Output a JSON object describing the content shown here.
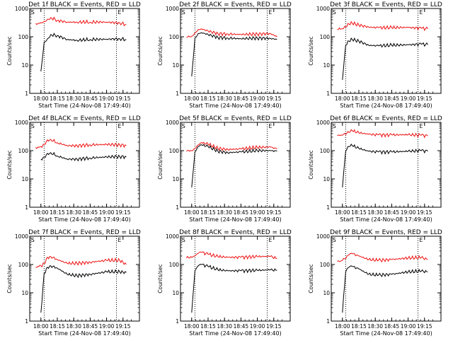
{
  "colors": {
    "events": "#000000",
    "lld": "#ee1111",
    "axis": "#000000",
    "marker": "#000000"
  },
  "chart_data": [
    {
      "type": "line",
      "title": "Det 1f BLACK = Events, RED = LLD",
      "xlabel": "Start Time (24-Nov-08 17:49:40)",
      "ylabel": "Counts/sec",
      "yscale": "log",
      "ylim": [
        1,
        1000
      ],
      "yticks": [
        "1",
        "10",
        "100",
        "1000"
      ],
      "xticks": [
        "18:00",
        "18:15",
        "18:30",
        "18:45",
        "19:00",
        "19:15"
      ],
      "markers": [
        "S",
        "E"
      ],
      "x": [
        17.92,
        17.97,
        18.0,
        18.05,
        18.1,
        18.15,
        18.25,
        18.4,
        18.55,
        18.75,
        19.0,
        19.2,
        19.3
      ],
      "series": [
        {
          "values": [
            300,
            300,
            320,
            350,
            420,
            480,
            380,
            330,
            330,
            330,
            330,
            310,
            270
          ]
        },
        {
          "values": [
            null,
            null,
            6,
            65,
            85,
            120,
            110,
            80,
            75,
            80,
            82,
            85,
            80
          ]
        }
      ]
    },
    {
      "type": "line",
      "title": "Det 2f BLACK = Events, RED = LLD",
      "xlabel": "Start Time (24-Nov-08 17:49:40)",
      "ylabel": "Counts/sec",
      "yscale": "log",
      "ylim": [
        1,
        1000
      ],
      "yticks": [
        "1",
        "10",
        "100",
        "1000"
      ],
      "xticks": [
        "18:00",
        "18:15",
        "18:30",
        "18:45",
        "19:00",
        "19:15"
      ],
      "markers": [
        "S",
        "E"
      ],
      "x": [
        17.92,
        17.97,
        18.0,
        18.05,
        18.1,
        18.15,
        18.25,
        18.4,
        18.55,
        18.75,
        19.0,
        19.2,
        19.3
      ],
      "series": [
        {
          "values": [
            95,
            100,
            105,
            140,
            180,
            190,
            160,
            130,
            125,
            120,
            125,
            130,
            100
          ]
        },
        {
          "values": [
            null,
            null,
            4,
            90,
            130,
            140,
            120,
            95,
            90,
            85,
            90,
            88,
            80
          ]
        }
      ]
    },
    {
      "type": "line",
      "title": "Det 3f BLACK = Events, RED = LLD",
      "xlabel": "Start Time (24-Nov-08 17:49:40)",
      "ylabel": "Counts/sec",
      "yscale": "log",
      "ylim": [
        1,
        1000
      ],
      "yticks": [
        "1",
        "10",
        "100",
        "1000"
      ],
      "xticks": [
        "18:00",
        "18:15",
        "18:30",
        "18:45",
        "19:00",
        "19:15"
      ],
      "markers": [
        "S",
        "E"
      ],
      "x": [
        17.92,
        17.97,
        18.0,
        18.05,
        18.1,
        18.15,
        18.25,
        18.4,
        18.55,
        18.75,
        19.0,
        19.2,
        19.3
      ],
      "series": [
        {
          "values": [
            180,
            185,
            190,
            220,
            280,
            300,
            260,
            220,
            210,
            210,
            215,
            200,
            190
          ]
        },
        {
          "values": [
            null,
            null,
            3,
            50,
            70,
            80,
            70,
            50,
            48,
            50,
            52,
            55,
            52
          ]
        }
      ]
    },
    {
      "type": "line",
      "title": "Det 4f BLACK = Events, RED = LLD",
      "xlabel": "Start Time (24-Nov-08 17:49:40)",
      "ylabel": "Counts/sec",
      "yscale": "log",
      "ylim": [
        1,
        1000
      ],
      "yticks": [
        "1",
        "10",
        "100",
        "1000"
      ],
      "xticks": [
        "18:00",
        "18:15",
        "18:30",
        "18:45",
        "19:00",
        "19:15"
      ],
      "markers": [
        "S",
        "E"
      ],
      "x": [
        17.92,
        17.97,
        18.0,
        18.05,
        18.1,
        18.15,
        18.25,
        18.4,
        18.55,
        18.75,
        19.0,
        19.2,
        19.3
      ],
      "series": [
        {
          "values": [
            130,
            130,
            140,
            170,
            240,
            250,
            190,
            150,
            150,
            160,
            165,
            160,
            150
          ]
        },
        {
          "values": [
            null,
            null,
            50,
            60,
            80,
            85,
            65,
            50,
            50,
            55,
            60,
            62,
            60
          ]
        }
      ]
    },
    {
      "type": "line",
      "title": "Det 5f BLACK = Events, RED = LLD",
      "xlabel": "Start Time (24-Nov-08 17:49:40)",
      "ylabel": "Counts/sec",
      "yscale": "log",
      "ylim": [
        1,
        1000
      ],
      "yticks": [
        "1",
        "10",
        "100",
        "1000"
      ],
      "xticks": [
        "18:00",
        "18:15",
        "18:30",
        "18:45",
        "19:00",
        "19:15"
      ],
      "markers": [
        "S",
        "E"
      ],
      "x": [
        17.92,
        17.97,
        18.0,
        18.05,
        18.1,
        18.15,
        18.25,
        18.4,
        18.55,
        18.75,
        19.0,
        19.2,
        19.3
      ],
      "series": [
        {
          "values": [
            95,
            95,
            100,
            120,
            160,
            190,
            170,
            120,
            110,
            115,
            130,
            135,
            115
          ]
        },
        {
          "values": [
            null,
            null,
            5,
            90,
            140,
            160,
            140,
            95,
            85,
            90,
            100,
            100,
            95
          ]
        }
      ]
    },
    {
      "type": "line",
      "title": "Det 6f BLACK = Events, RED = LLD",
      "xlabel": "Start Time (24-Nov-08 17:49:40)",
      "ylabel": "Counts/sec",
      "yscale": "log",
      "ylim": [
        1,
        1000
      ],
      "yticks": [
        "1",
        "10",
        "100",
        "1000"
      ],
      "xticks": [
        "18:00",
        "18:15",
        "18:30",
        "18:45",
        "19:00",
        "19:15"
      ],
      "markers": [
        "S",
        "E"
      ],
      "x": [
        17.92,
        17.97,
        18.0,
        18.05,
        18.1,
        18.15,
        18.25,
        18.4,
        18.55,
        18.75,
        19.0,
        19.2,
        19.3
      ],
      "series": [
        {
          "values": [
            340,
            340,
            350,
            380,
            440,
            500,
            430,
            380,
            360,
            360,
            365,
            350,
            330
          ]
        },
        {
          "values": [
            null,
            null,
            5,
            95,
            140,
            150,
            120,
            95,
            90,
            90,
            95,
            100,
            95
          ]
        }
      ]
    },
    {
      "type": "line",
      "title": "Det 7f BLACK = Events, RED = LLD",
      "xlabel": "Start Time (24-Nov-08 17:49:40)",
      "ylabel": "Counts/sec",
      "yscale": "log",
      "ylim": [
        1,
        1000
      ],
      "yticks": [
        "1",
        "10",
        "100",
        "1000"
      ],
      "xticks": [
        "18:00",
        "18:15",
        "18:30",
        "18:45",
        "19:00",
        "19:15"
      ],
      "markers": [
        "S",
        "E"
      ],
      "x": [
        17.92,
        17.97,
        18.0,
        18.05,
        18.1,
        18.15,
        18.25,
        18.4,
        18.55,
        18.75,
        19.0,
        19.2,
        19.3
      ],
      "series": [
        {
          "values": [
            80,
            85,
            90,
            110,
            180,
            190,
            150,
            110,
            110,
            120,
            140,
            140,
            100
          ]
        },
        {
          "values": [
            null,
            null,
            2,
            50,
            80,
            90,
            75,
            45,
            40,
            45,
            55,
            55,
            52
          ]
        }
      ]
    },
    {
      "type": "line",
      "title": "Det 8f BLACK = Events, RED = LLD",
      "xlabel": "Start Time (24-Nov-08 17:49:40)",
      "ylabel": "Counts/sec",
      "yscale": "log",
      "ylim": [
        1,
        1000
      ],
      "yticks": [
        "1",
        "10",
        "100",
        "1000"
      ],
      "xticks": [
        "18:00",
        "18:15",
        "18:30",
        "18:45",
        "19:00",
        "19:15"
      ],
      "markers": [
        "S",
        "E"
      ],
      "x": [
        17.92,
        17.97,
        18.0,
        18.05,
        18.1,
        18.15,
        18.25,
        18.4,
        18.55,
        18.75,
        19.0,
        19.2,
        19.3
      ],
      "series": [
        {
          "values": [
            170,
            170,
            180,
            200,
            250,
            270,
            230,
            190,
            180,
            180,
            190,
            195,
            160
          ]
        },
        {
          "values": [
            null,
            null,
            2,
            60,
            90,
            100,
            85,
            65,
            60,
            60,
            62,
            65,
            62
          ]
        }
      ]
    },
    {
      "type": "line",
      "title": "Det 9f BLACK = Events, RED = LLD",
      "xlabel": "Start Time (24-Nov-08 17:49:40)",
      "ylabel": "Counts/sec",
      "yscale": "log",
      "ylim": [
        1,
        1000
      ],
      "yticks": [
        "1",
        "10",
        "100",
        "1000"
      ],
      "xticks": [
        "18:00",
        "18:15",
        "18:30",
        "18:45",
        "19:00",
        "19:15"
      ],
      "markers": [
        "S",
        "E"
      ],
      "x": [
        17.92,
        17.97,
        18.0,
        18.05,
        18.1,
        18.15,
        18.25,
        18.4,
        18.55,
        18.75,
        19.0,
        19.2,
        19.3
      ],
      "series": [
        {
          "values": [
            130,
            130,
            140,
            160,
            220,
            240,
            200,
            150,
            140,
            150,
            170,
            175,
            150
          ]
        },
        {
          "values": [
            null,
            null,
            2,
            55,
            80,
            85,
            70,
            45,
            42,
            45,
            55,
            58,
            55
          ]
        }
      ]
    }
  ]
}
